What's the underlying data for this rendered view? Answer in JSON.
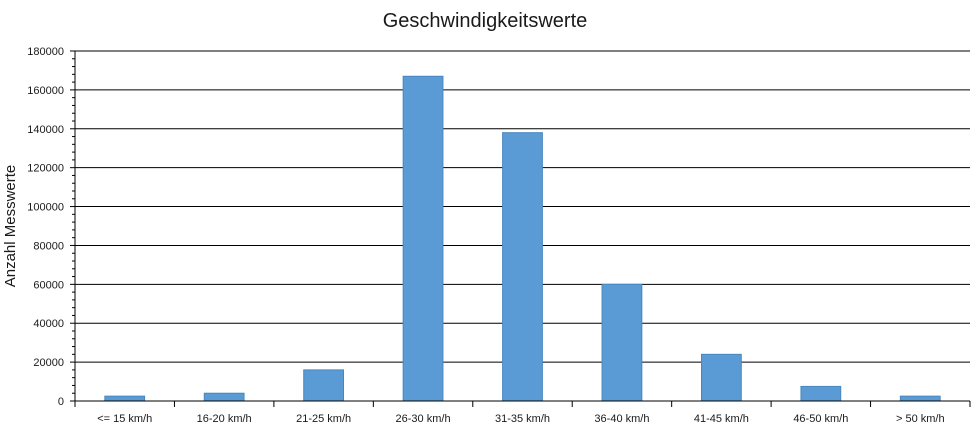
{
  "chart_data": {
    "type": "bar",
    "title": "Geschwindigkeitswerte",
    "xlabel": "",
    "ylabel": "Anzahl Messwerte",
    "categories": [
      "<= 15 km/h",
      "16-20 km/h",
      "21-25 km/h",
      "26-30 km/h",
      "31-35 km/h",
      "36-40 km/h",
      "41-45 km/h",
      "46-50 km/h",
      "> 50 km/h"
    ],
    "values": [
      2500,
      4000,
      16000,
      167000,
      138000,
      60000,
      24000,
      7500,
      2500
    ],
    "ylim": [
      0,
      180000
    ],
    "yticks": [
      "0",
      "20000",
      "40000",
      "60000",
      "80000",
      "100000",
      "120000",
      "140000",
      "160000",
      "180000"
    ],
    "grid": true,
    "legend": "none",
    "bar_color": "#5B9BD5",
    "bar_edge_color": "#4A86BE"
  }
}
